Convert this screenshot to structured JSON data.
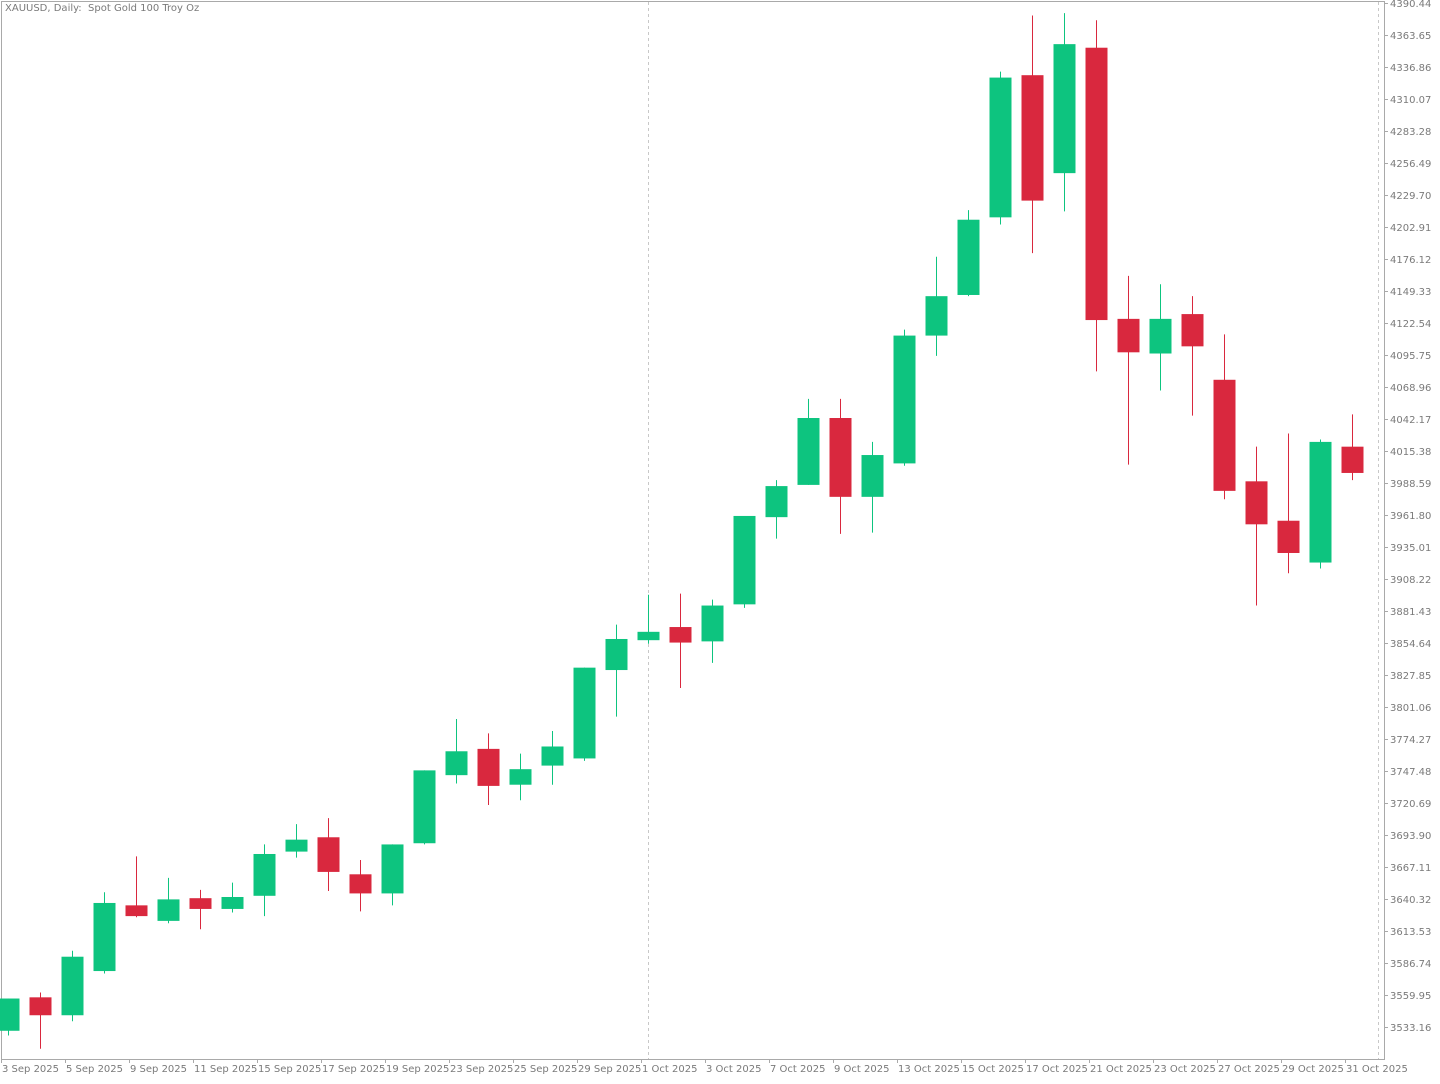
{
  "title": "XAUUSD, Daily:  Spot Gold 100 Troy Oz",
  "colors": {
    "up": "#0dc47f",
    "down": "#d9283e",
    "grid": "#c8c8c8",
    "axis": "#a9a9a9",
    "text": "#7a7a7a",
    "background": "#ffffff"
  },
  "chart_data": {
    "type": "candlestick",
    "title": "XAUUSD, Daily:  Spot Gold 100 Troy Oz",
    "ylim": [
      3512.6,
      4390.44
    ],
    "y_ticks": [
      "4390.44",
      "4363.65",
      "4336.86",
      "4310.07",
      "4283.28",
      "4256.49",
      "4229.70",
      "4202.91",
      "4176.12",
      "4149.33",
      "4122.54",
      "4095.75",
      "4068.96",
      "4042.17",
      "4015.38",
      "3988.59",
      "3961.80",
      "3935.01",
      "3908.22",
      "3881.43",
      "3854.64",
      "3827.85",
      "3801.06",
      "3774.27",
      "3747.48",
      "3720.69",
      "3693.90",
      "3667.11",
      "3640.32",
      "3613.53",
      "3586.74",
      "3559.95",
      "3533.16"
    ],
    "x_ticks": [
      "3 Sep 2025",
      "5 Sep 2025",
      "9 Sep 2025",
      "11 Sep 2025",
      "15 Sep 2025",
      "17 Sep 2025",
      "19 Sep 2025",
      "23 Sep 2025",
      "25 Sep 2025",
      "29 Sep 2025",
      "1 Oct 2025",
      "3 Oct 2025",
      "7 Oct 2025",
      "9 Oct 2025",
      "13 Oct 2025",
      "15 Oct 2025",
      "17 Oct 2025",
      "21 Oct 2025",
      "23 Oct 2025",
      "27 Oct 2025",
      "29 Oct 2025",
      "31 Oct 2025"
    ],
    "month_separator": "1 Oct 2025",
    "grid": false,
    "candles": [
      {
        "date": "3 Sep 2025",
        "open": 3530.0,
        "high": 3557.0,
        "low": 3526.0,
        "close": 3557.0
      },
      {
        "date": "4 Sep 2025",
        "open": 3558.0,
        "high": 3562.0,
        "low": 3515.0,
        "close": 3543.0
      },
      {
        "date": "5 Sep 2025",
        "open": 3543.0,
        "high": 3597.0,
        "low": 3538.0,
        "close": 3592.0
      },
      {
        "date": "8 Sep 2025",
        "open": 3580.0,
        "high": 3646.0,
        "low": 3578.0,
        "close": 3637.0
      },
      {
        "date": "9 Sep 2025",
        "open": 3635.0,
        "high": 3676.0,
        "low": 3625.0,
        "close": 3626.0
      },
      {
        "date": "10 Sep 2025",
        "open": 3622.0,
        "high": 3658.0,
        "low": 3620.0,
        "close": 3640.0
      },
      {
        "date": "11 Sep 2025",
        "open": 3641.0,
        "high": 3648.0,
        "low": 3615.0,
        "close": 3632.0
      },
      {
        "date": "12 Sep 2025",
        "open": 3632.0,
        "high": 3654.0,
        "low": 3629.0,
        "close": 3642.0
      },
      {
        "date": "15 Sep 2025",
        "open": 3643.0,
        "high": 3686.0,
        "low": 3626.0,
        "close": 3678.0
      },
      {
        "date": "16 Sep 2025",
        "open": 3680.0,
        "high": 3703.0,
        "low": 3675.0,
        "close": 3690.0
      },
      {
        "date": "17 Sep 2025",
        "open": 3692.0,
        "high": 3708.0,
        "low": 3647.0,
        "close": 3663.0
      },
      {
        "date": "18 Sep 2025",
        "open": 3661.0,
        "high": 3673.0,
        "low": 3630.0,
        "close": 3645.0
      },
      {
        "date": "19 Sep 2025",
        "open": 3645.0,
        "high": 3686.0,
        "low": 3635.0,
        "close": 3686.0
      },
      {
        "date": "22 Sep 2025",
        "open": 3687.0,
        "high": 3748.0,
        "low": 3686.0,
        "close": 3748.0
      },
      {
        "date": "23 Sep 2025",
        "open": 3744.0,
        "high": 3791.0,
        "low": 3737.0,
        "close": 3764.0
      },
      {
        "date": "24 Sep 2025",
        "open": 3766.0,
        "high": 3779.0,
        "low": 3719.0,
        "close": 3735.0
      },
      {
        "date": "25 Sep 2025",
        "open": 3736.0,
        "high": 3762.0,
        "low": 3723.0,
        "close": 3749.0
      },
      {
        "date": "26 Sep 2025",
        "open": 3752.0,
        "high": 3781.0,
        "low": 3736.0,
        "close": 3768.0
      },
      {
        "date": "29 Sep 2025",
        "open": 3758.0,
        "high": 3834.0,
        "low": 3756.0,
        "close": 3834.0
      },
      {
        "date": "30 Sep 2025",
        "open": 3832.0,
        "high": 3870.0,
        "low": 3793.0,
        "close": 3858.0
      },
      {
        "date": "1 Oct 2025",
        "open": 3857.0,
        "high": 3895.0,
        "low": 3854.0,
        "close": 3864.0
      },
      {
        "date": "2 Oct 2025",
        "open": 3868.0,
        "high": 3896.0,
        "low": 3817.0,
        "close": 3855.0
      },
      {
        "date": "3 Oct 2025",
        "open": 3856.0,
        "high": 3891.0,
        "low": 3838.0,
        "close": 3886.0
      },
      {
        "date": "6 Oct 2025",
        "open": 3887.0,
        "high": 3961.0,
        "low": 3884.0,
        "close": 3961.0
      },
      {
        "date": "7 Oct 2025",
        "open": 3960.0,
        "high": 3991.0,
        "low": 3942.0,
        "close": 3986.0
      },
      {
        "date": "8 Oct 2025",
        "open": 3987.0,
        "high": 4059.0,
        "low": 3987.0,
        "close": 4043.0
      },
      {
        "date": "9 Oct 2025",
        "open": 4043.0,
        "high": 4059.0,
        "low": 3946.0,
        "close": 3977.0
      },
      {
        "date": "10 Oct 2025",
        "open": 3977.0,
        "high": 4023.0,
        "low": 3947.0,
        "close": 4012.0
      },
      {
        "date": "13 Oct 2025",
        "open": 4005.0,
        "high": 4117.0,
        "low": 4003.0,
        "close": 4112.0
      },
      {
        "date": "14 Oct 2025",
        "open": 4112.0,
        "high": 4178.0,
        "low": 4095.0,
        "close": 4145.0
      },
      {
        "date": "15 Oct 2025",
        "open": 4146.0,
        "high": 4217.0,
        "low": 4145.0,
        "close": 4209.0
      },
      {
        "date": "16 Oct 2025",
        "open": 4211.0,
        "high": 4333.0,
        "low": 4205.0,
        "close": 4328.0
      },
      {
        "date": "17 Oct 2025",
        "open": 4330.0,
        "high": 4380.0,
        "low": 4181.0,
        "close": 4225.0
      },
      {
        "date": "20 Oct 2025",
        "open": 4248.0,
        "high": 4382.0,
        "low": 4216.0,
        "close": 4356.0
      },
      {
        "date": "21 Oct 2025",
        "open": 4353.0,
        "high": 4376.0,
        "low": 4082.0,
        "close": 4125.0
      },
      {
        "date": "22 Oct 2025",
        "open": 4126.0,
        "high": 4162.0,
        "low": 4004.0,
        "close": 4098.0
      },
      {
        "date": "23 Oct 2025",
        "open": 4097.0,
        "high": 4155.0,
        "low": 4066.0,
        "close": 4126.0
      },
      {
        "date": "24 Oct 2025",
        "open": 4130.0,
        "high": 4145.0,
        "low": 4045.0,
        "close": 4103.0
      },
      {
        "date": "27 Oct 2025",
        "open": 4075.0,
        "high": 4113.0,
        "low": 3975.0,
        "close": 3982.0
      },
      {
        "date": "28 Oct 2025",
        "open": 3990.0,
        "high": 4019.0,
        "low": 3886.0,
        "close": 3954.0
      },
      {
        "date": "29 Oct 2025",
        "open": 3957.0,
        "high": 4030.0,
        "low": 3913.0,
        "close": 3930.0
      },
      {
        "date": "30 Oct 2025",
        "open": 3922.0,
        "high": 4025.0,
        "low": 3917.0,
        "close": 4023.0
      },
      {
        "date": "31 Oct 2025",
        "open": 4019.0,
        "high": 4046.0,
        "low": 3991.0,
        "close": 3997.0
      }
    ]
  }
}
